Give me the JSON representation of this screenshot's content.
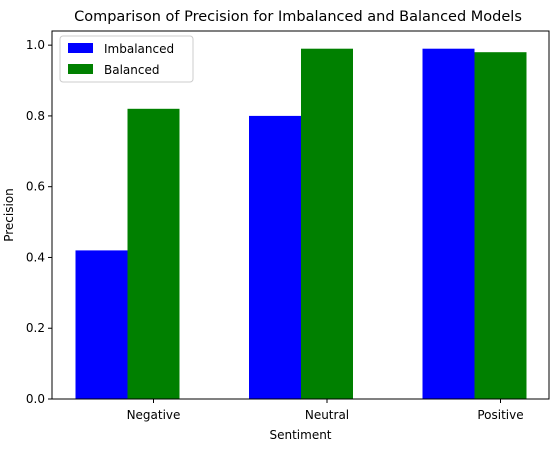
{
  "chart_data": {
    "type": "bar",
    "title": "Comparison of Precision for Imbalanced and Balanced Models",
    "xlabel": "Sentiment",
    "ylabel": "Precision",
    "categories": [
      "Negative",
      "Neutral",
      "Positive"
    ],
    "series": [
      {
        "name": "Imbalanced",
        "color": "#0000ff",
        "values": [
          0.42,
          0.8,
          0.99
        ]
      },
      {
        "name": "Balanced",
        "color": "#008000",
        "values": [
          0.82,
          0.99,
          0.98
        ]
      }
    ],
    "ylim": [
      0,
      1.04
    ],
    "yticks": [
      0.0,
      0.2,
      0.4,
      0.6,
      0.8,
      1.0
    ],
    "ytick_labels": [
      "0.0",
      "0.2",
      "0.4",
      "0.6",
      "0.8",
      "1.0"
    ],
    "grid": false,
    "legend_position": "top-left"
  }
}
